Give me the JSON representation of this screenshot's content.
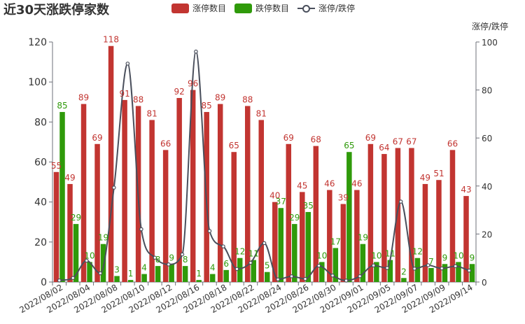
{
  "title": "近30天涨跌停家数",
  "legend": [
    {
      "name": "涨停数目",
      "color": "#c23531",
      "kind": "bar"
    },
    {
      "name": "跌停数目",
      "color": "#2f9a0a",
      "kind": "bar"
    },
    {
      "name": "涨停/跌停",
      "color": "#4a4f5c",
      "kind": "line"
    }
  ],
  "chart_data": {
    "type": "bar",
    "categories": [
      "2022/08/02",
      "2022/08/03",
      "2022/08/04",
      "2022/08/05",
      "2022/08/08",
      "2022/08/09",
      "2022/08/10",
      "2022/08/11",
      "2022/08/12",
      "2022/08/15",
      "2022/08/16",
      "2022/08/17",
      "2022/08/18",
      "2022/08/19",
      "2022/08/22",
      "2022/08/23",
      "2022/08/24",
      "2022/08/25",
      "2022/08/26",
      "2022/08/29",
      "2022/08/30",
      "2022/08/31",
      "2022/09/01",
      "2022/09/02",
      "2022/09/05",
      "2022/09/06",
      "2022/09/07",
      "2022/09/08",
      "2022/09/09",
      "2022/09/13",
      "2022/09/14"
    ],
    "x_tick_labels": [
      "2022/08/02",
      "2022/08/04",
      "2022/08/08",
      "2022/08/10",
      "2022/08/12",
      "2022/08/16",
      "2022/08/18",
      "2022/08/22",
      "2022/08/24",
      "2022/08/26",
      "2022/08/30",
      "2022/09/01",
      "2022/09/05",
      "2022/09/07",
      "2022/09/09",
      "2022/09/14"
    ],
    "series": [
      {
        "name": "涨停数目",
        "color": "#c23531",
        "values": [
          55,
          49,
          89,
          69,
          118,
          91,
          88,
          81,
          66,
          92,
          96,
          85,
          89,
          65,
          88,
          81,
          40,
          69,
          45,
          68,
          46,
          39,
          46,
          69,
          64,
          67,
          67,
          49,
          51,
          66,
          43
        ]
      },
      {
        "name": "跌停数目",
        "color": "#2f9a0a",
        "values": [
          85,
          29,
          10,
          19,
          3,
          1,
          4,
          8,
          9,
          8,
          1,
          4,
          6,
          12,
          11,
          5,
          37,
          29,
          35,
          10,
          17,
          65,
          19,
          10,
          11,
          2,
          12,
          7,
          9,
          10,
          9
        ]
      },
      {
        "name": "涨停/跌停",
        "color": "#4a4f5c",
        "axis": "right",
        "values": [
          0.65,
          1.69,
          8.9,
          3.63,
          39.33,
          91,
          22,
          10.13,
          7.33,
          11.5,
          96,
          21.25,
          14.83,
          5.42,
          8,
          16.2,
          1.08,
          2.38,
          1.29,
          6.8,
          2.71,
          0.6,
          2.42,
          6.9,
          5.82,
          33.5,
          5.58,
          7,
          5.67,
          6.6,
          4.78
        ]
      }
    ],
    "y_left": {
      "min": 0,
      "max": 120,
      "ticks": [
        0,
        20,
        40,
        60,
        80,
        100,
        120
      ]
    },
    "y_right": {
      "min": 0,
      "max": 100,
      "ticks": [
        0,
        20,
        40,
        60,
        80,
        100
      ],
      "label": "涨停/跌停"
    },
    "grid": false,
    "legend_position": "top"
  }
}
